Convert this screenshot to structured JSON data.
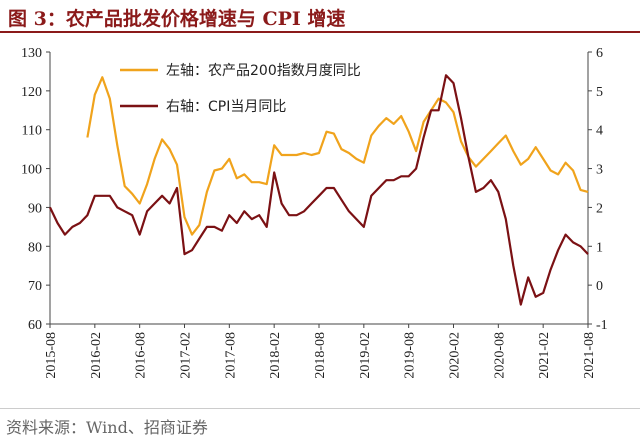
{
  "title": "图 3：农产品批发价格增速与 CPI 增速",
  "source": "资料来源：Wind、招商证券",
  "colors": {
    "series_1": "#f0a31c",
    "series_2": "#7b1114",
    "title": "#8b1a1a"
  },
  "chart_data": {
    "type": "line",
    "legend_position": "top-left",
    "grid": false,
    "x_tick_labels": [
      "2015-08",
      "2016-02",
      "2016-08",
      "2017-02",
      "2017-08",
      "2018-02",
      "2018-08",
      "2019-02",
      "2019-08",
      "2020-02",
      "2020-08",
      "2021-02",
      "2021-08"
    ],
    "y_left": {
      "lim": [
        60,
        130
      ],
      "ticks": [
        60,
        70,
        80,
        90,
        100,
        110,
        120,
        130
      ]
    },
    "y_right": {
      "lim": [
        -1,
        6
      ],
      "ticks": [
        -1,
        0,
        1,
        2,
        3,
        4,
        5,
        6
      ]
    },
    "series": [
      {
        "name": "左轴：农产品200指数月度同比",
        "axis": "left",
        "x": [
          "2016-01",
          "2016-02",
          "2016-03",
          "2016-04",
          "2016-05",
          "2016-06",
          "2016-07",
          "2016-08",
          "2016-09",
          "2016-10",
          "2016-11",
          "2016-12",
          "2017-01",
          "2017-02",
          "2017-03",
          "2017-04",
          "2017-05",
          "2017-06",
          "2017-07",
          "2017-08",
          "2017-09",
          "2017-10",
          "2017-11",
          "2017-12",
          "2018-01",
          "2018-02",
          "2018-03",
          "2018-04",
          "2018-05",
          "2018-06",
          "2018-07",
          "2018-08",
          "2018-09",
          "2018-10",
          "2018-11",
          "2018-12",
          "2019-01",
          "2019-02",
          "2019-03",
          "2019-04",
          "2019-05",
          "2019-06",
          "2019-07",
          "2019-08",
          "2019-09",
          "2019-10",
          "2019-11",
          "2019-12",
          "2020-01",
          "2020-02",
          "2020-03",
          "2020-04",
          "2020-05",
          "2020-06",
          "2020-07",
          "2020-08",
          "2020-09",
          "2020-10",
          "2020-11",
          "2020-12",
          "2021-01",
          "2021-02",
          "2021-03",
          "2021-04",
          "2021-05",
          "2021-06",
          "2021-07",
          "2021-08"
        ],
        "values": [
          108,
          119,
          123.5,
          118,
          106,
          95.5,
          93.5,
          91,
          96,
          102.5,
          107.5,
          105,
          101,
          87.5,
          83,
          85.5,
          94,
          99.5,
          100,
          102.5,
          97.5,
          98.5,
          96.5,
          96.5,
          96,
          106,
          103.5,
          103.5,
          103.5,
          104,
          103.5,
          104,
          109.5,
          109,
          105,
          104,
          102.5,
          101.5,
          108.5,
          111,
          113,
          111.5,
          113.5,
          109.5,
          104.5,
          112,
          115,
          118,
          117,
          114.5,
          107,
          103,
          100.5,
          102.5,
          104.5,
          106.5,
          108.5,
          104.5,
          101,
          102.5,
          105.5,
          102.5,
          99.5,
          98.5,
          101.5,
          99.5,
          94.5,
          94
        ]
      },
      {
        "name": "右轴：CPI当月同比",
        "axis": "right",
        "x": [
          "2015-08",
          "2015-09",
          "2015-10",
          "2015-11",
          "2015-12",
          "2016-01",
          "2016-02",
          "2016-03",
          "2016-04",
          "2016-05",
          "2016-06",
          "2016-07",
          "2016-08",
          "2016-09",
          "2016-10",
          "2016-11",
          "2016-12",
          "2017-01",
          "2017-02",
          "2017-03",
          "2017-04",
          "2017-05",
          "2017-06",
          "2017-07",
          "2017-08",
          "2017-09",
          "2017-10",
          "2017-11",
          "2017-12",
          "2018-01",
          "2018-02",
          "2018-03",
          "2018-04",
          "2018-05",
          "2018-06",
          "2018-07",
          "2018-08",
          "2018-09",
          "2018-10",
          "2018-11",
          "2018-12",
          "2019-01",
          "2019-02",
          "2019-03",
          "2019-04",
          "2019-05",
          "2019-06",
          "2019-07",
          "2019-08",
          "2019-09",
          "2019-10",
          "2019-11",
          "2019-12",
          "2020-01",
          "2020-02",
          "2020-03",
          "2020-04",
          "2020-05",
          "2020-06",
          "2020-07",
          "2020-08",
          "2020-09",
          "2020-10",
          "2020-11",
          "2020-12",
          "2021-01",
          "2021-02",
          "2021-03",
          "2021-04",
          "2021-05",
          "2021-06",
          "2021-07",
          "2021-08"
        ],
        "values": [
          2.0,
          1.6,
          1.3,
          1.5,
          1.6,
          1.8,
          2.3,
          2.3,
          2.3,
          2.0,
          1.9,
          1.8,
          1.3,
          1.9,
          2.1,
          2.3,
          2.1,
          2.5,
          0.8,
          0.9,
          1.2,
          1.5,
          1.5,
          1.4,
          1.8,
          1.6,
          1.9,
          1.7,
          1.8,
          1.5,
          2.9,
          2.1,
          1.8,
          1.8,
          1.9,
          2.1,
          2.3,
          2.5,
          2.5,
          2.2,
          1.9,
          1.7,
          1.5,
          2.3,
          2.5,
          2.7,
          2.7,
          2.8,
          2.8,
          3.0,
          3.8,
          4.5,
          4.5,
          5.4,
          5.2,
          4.3,
          3.3,
          2.4,
          2.5,
          2.7,
          2.4,
          1.7,
          0.5,
          -0.5,
          0.2,
          -0.3,
          -0.2,
          0.4,
          0.9,
          1.3,
          1.1,
          1.0,
          0.8
        ]
      }
    ]
  }
}
